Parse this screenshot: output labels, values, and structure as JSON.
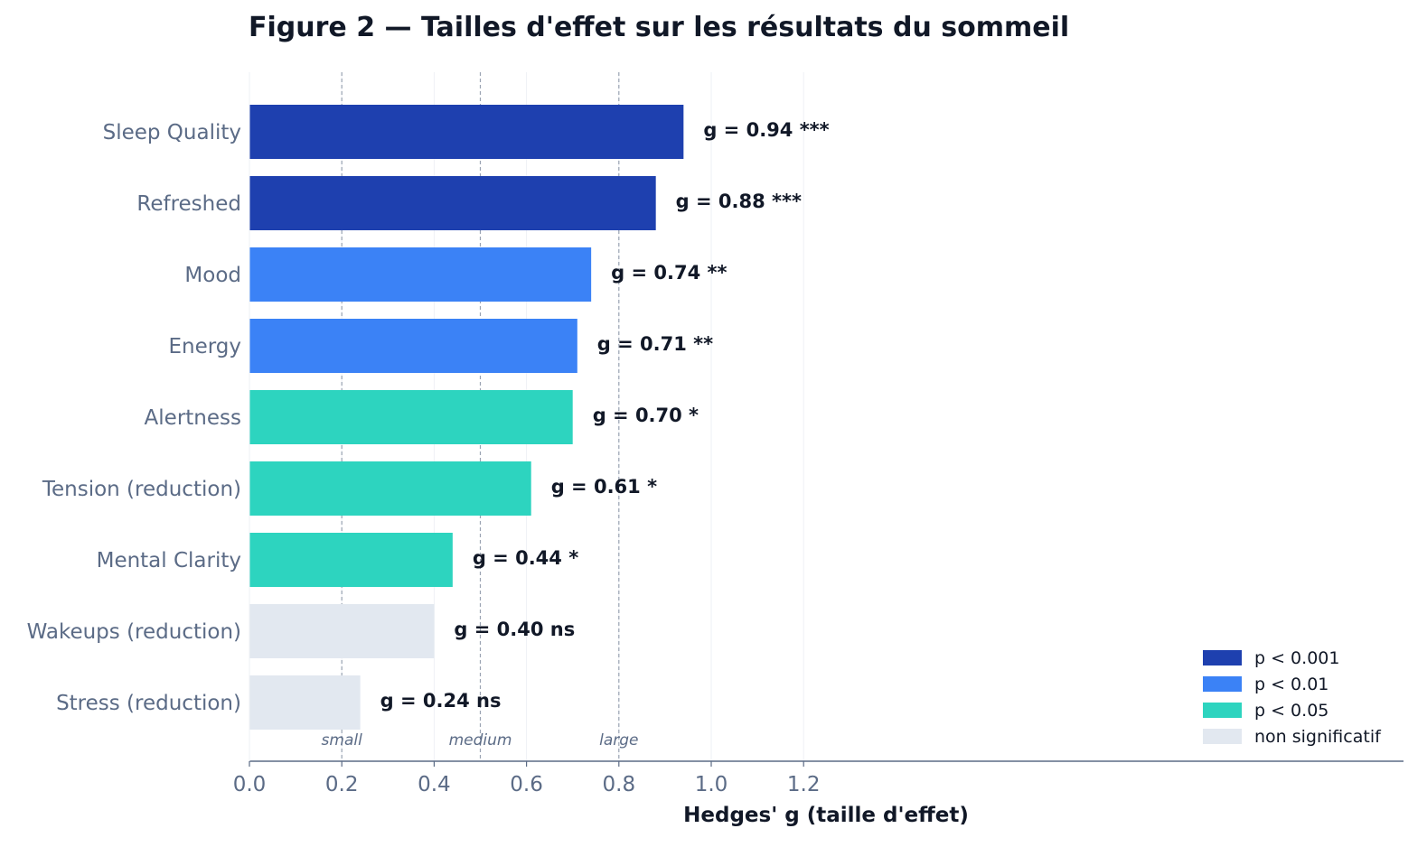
{
  "chart_data": {
    "type": "bar",
    "orientation": "horizontal",
    "title": "Figure 2 — Tailles d'effet sur les résultats du sommeil",
    "xlabel": "Hedges' g (taille d'effet)",
    "ylabel": "",
    "xlim": [
      0.0,
      1.25
    ],
    "x_ticks": [
      0.0,
      0.2,
      0.4,
      0.6,
      0.8,
      1.0,
      1.2
    ],
    "x_tick_labels": [
      "0.0",
      "0.2",
      "0.4",
      "0.6",
      "0.8",
      "1.0",
      "1.2"
    ],
    "grid": "vertical",
    "categories": [
      "Sleep Quality",
      "Refreshed",
      "Mood",
      "Energy",
      "Alertness",
      "Tension (reduction)",
      "Mental Clarity",
      "Wakeups (reduction)",
      "Stress (reduction)"
    ],
    "values": [
      0.94,
      0.88,
      0.74,
      0.71,
      0.7,
      0.61,
      0.44,
      0.4,
      0.24
    ],
    "value_labels": [
      "g = 0.94  ***",
      "g = 0.88  ***",
      "g = 0.74  **",
      "g = 0.71  **",
      "g = 0.70  *",
      "g = 0.61  *",
      "g = 0.44  *",
      "g = 0.40  ns",
      "g = 0.24  ns"
    ],
    "significance": [
      "p001",
      "p001",
      "p01",
      "p01",
      "p05",
      "p05",
      "p05",
      "ns",
      "ns"
    ],
    "reference_lines": [
      {
        "value": 0.2,
        "label": "small"
      },
      {
        "value": 0.5,
        "label": "medium"
      },
      {
        "value": 0.8,
        "label": "large"
      }
    ],
    "legend_position": "bottom-right",
    "legend": [
      {
        "key": "p001",
        "label": "p < 0.001",
        "color": "#1e40af"
      },
      {
        "key": "p01",
        "label": "p < 0.01",
        "color": "#3b82f6"
      },
      {
        "key": "p05",
        "label": "p < 0.05",
        "color": "#2dd4bf"
      },
      {
        "key": "ns",
        "label": "non significatif",
        "color": "#e2e8f0"
      }
    ]
  }
}
